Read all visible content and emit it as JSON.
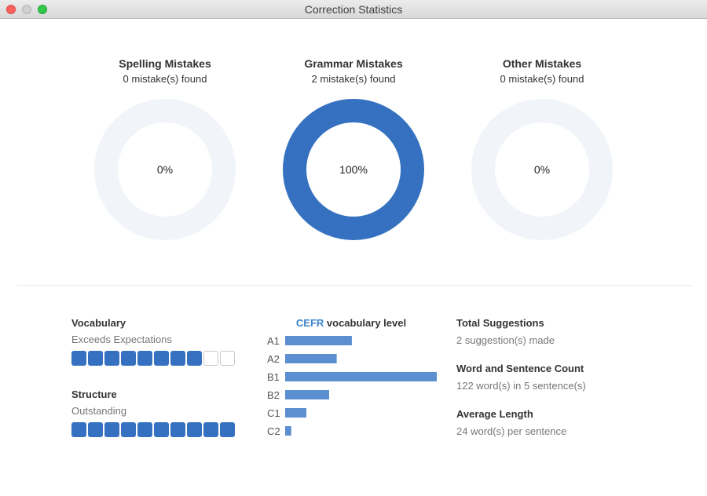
{
  "window": {
    "title": "Correction Statistics"
  },
  "donuts": [
    {
      "title": "Spelling Mistakes",
      "subtitle": "0 mistake(s) found",
      "percent_label": "0%",
      "fraction": 0.0
    },
    {
      "title": "Grammar Mistakes",
      "subtitle": "2 mistake(s) found",
      "percent_label": "100%",
      "fraction": 1.0
    },
    {
      "title": "Other Mistakes",
      "subtitle": "0 mistake(s) found",
      "percent_label": "0%",
      "fraction": 0.0
    }
  ],
  "ratings": [
    {
      "title": "Vocabulary",
      "value": "Exceeds Expectations",
      "filled": 8,
      "total": 10
    },
    {
      "title": "Structure",
      "value": "Outstanding",
      "filled": 10,
      "total": 10
    }
  ],
  "cefr": {
    "title_accent": "CEFR",
    "title_rest": " vocabulary level"
  },
  "chart_data": {
    "type": "bar",
    "orientation": "horizontal",
    "title": "CEFR vocabulary level",
    "categories": [
      "A1",
      "A2",
      "B1",
      "B2",
      "C1",
      "C2"
    ],
    "values": [
      44,
      34,
      100,
      29,
      14,
      4
    ],
    "xlim": [
      0,
      100
    ],
    "grid": false,
    "legend": "none"
  },
  "stats": [
    {
      "title": "Total Suggestions",
      "value": "2 suggestion(s) made"
    },
    {
      "title": "Word and Sentence Count",
      "value": "122 word(s) in 5 sentence(s)"
    },
    {
      "title": "Average Length",
      "value": "24 word(s) per sentence"
    }
  ],
  "colors": {
    "accent": "#3571c0",
    "bar": "#5b8fcf",
    "track": "#f1f4f9",
    "cefr_accent": "#3b82c8"
  }
}
